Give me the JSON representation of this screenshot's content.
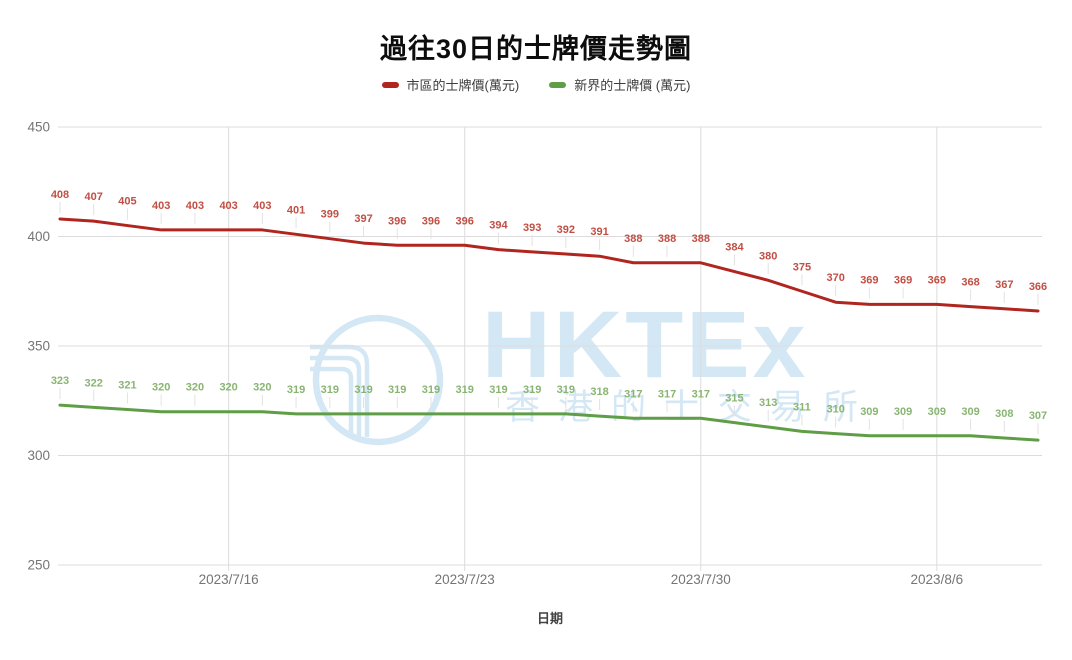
{
  "title": "過往30日的士牌價走勢圖",
  "watermark": {
    "text": "HKTEx",
    "subtext": "香港的士交易所",
    "color": "#d3e7f5"
  },
  "axis": {
    "tick_color": "#757575",
    "grid_color": "#dcdcdc"
  },
  "chart_data": {
    "type": "line",
    "title": "過往30日的士牌價走勢圖",
    "xlabel": "日期",
    "ylabel": "",
    "ylim": [
      250,
      450
    ],
    "y_ticks": [
      250,
      300,
      350,
      400,
      450
    ],
    "x_tick_labels": [
      "2023/7/16",
      "2023/7/23",
      "2023/7/30",
      "2023/8/6"
    ],
    "x_tick_point_indices": [
      5,
      12,
      19,
      26
    ],
    "num_points": 30,
    "grid": true,
    "legend_position": "top",
    "data_labels": true,
    "series": [
      {
        "name": "市區的士牌價(萬元)",
        "color": "#b0261f",
        "label_color": "#c24f44",
        "values": [
          408,
          407,
          405,
          403,
          403,
          403,
          403,
          401,
          399,
          397,
          396,
          396,
          396,
          394,
          393,
          392,
          391,
          388,
          388,
          388,
          384,
          380,
          375,
          370,
          369,
          369,
          369,
          368,
          367,
          366
        ]
      },
      {
        "name": "新界的士牌價 (萬元)",
        "color": "#5f9e47",
        "label_color": "#89b573",
        "values": [
          323,
          322,
          321,
          320,
          320,
          320,
          320,
          319,
          319,
          319,
          319,
          319,
          319,
          319,
          319,
          319,
          318,
          317,
          317,
          317,
          315,
          313,
          311,
          310,
          309,
          309,
          309,
          309,
          308,
          307
        ]
      }
    ]
  }
}
